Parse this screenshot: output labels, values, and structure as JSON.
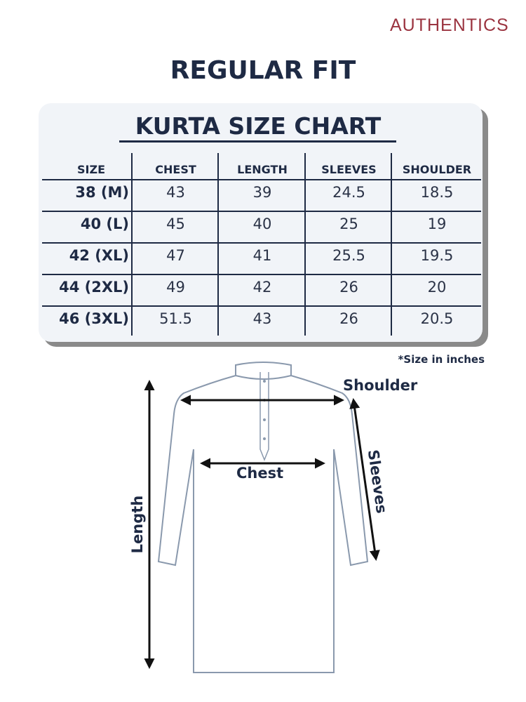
{
  "brand": {
    "logo_text": "AUTHENTICS",
    "color": "#9b3440"
  },
  "fit_title": "REGULAR FIT",
  "chart_title": "KURTA SIZE CHART",
  "table": {
    "headers": [
      "SIZE",
      "CHEST",
      "LENGTH",
      "SLEEVES",
      "SHOULDER"
    ],
    "rows": [
      [
        "38 (M)",
        "43",
        "39",
        "24.5",
        "18.5"
      ],
      [
        "40 (L)",
        "45",
        "40",
        "25",
        "19"
      ],
      [
        "42 (XL)",
        "47",
        "41",
        "25.5",
        "19.5"
      ],
      [
        "44 (2XL)",
        "49",
        "42",
        "26",
        "20"
      ],
      [
        "46 (3XL)",
        "51.5",
        "43",
        "26",
        "20.5"
      ]
    ]
  },
  "note": "*Size in inches",
  "diagram": {
    "shoulder": "Shoulder",
    "chest": "Chest",
    "sleeves": "Sleeves",
    "length": "Length"
  },
  "colors": {
    "text": "#1e2a44",
    "outline": "#8a99ad",
    "card": "#f1f4f8"
  }
}
